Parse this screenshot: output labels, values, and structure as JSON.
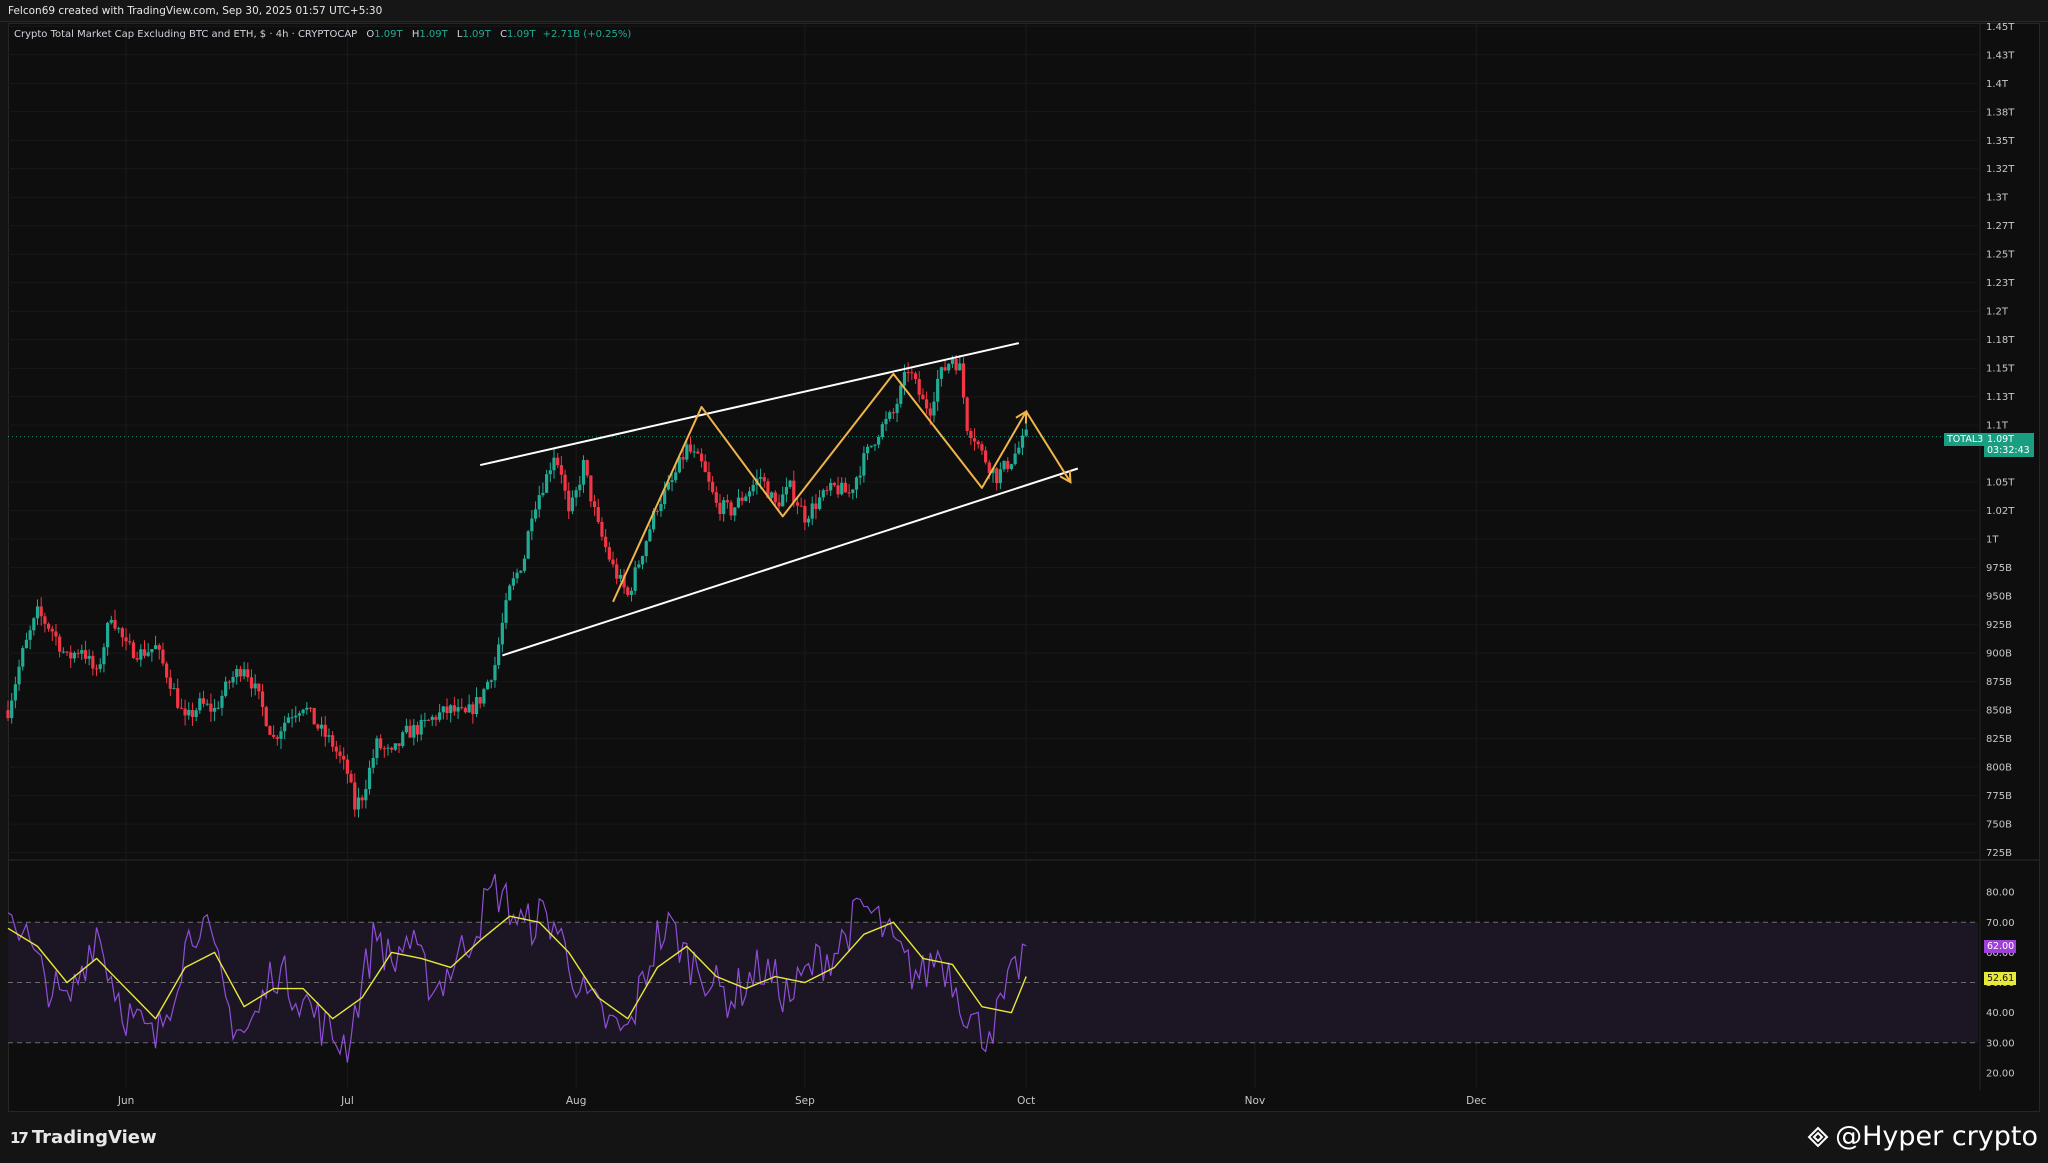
{
  "header": {
    "credit": "Felcon69 created with TradingView.com, Sep 30, 2025 01:57 UTC+5:30"
  },
  "legend": {
    "symbol": "Crypto Total Market Cap Excluding BTC and ETH, $ · 4h · CRYPTOCAP",
    "open_label": "O",
    "open": "1.09T",
    "high_label": "H",
    "high": "1.09T",
    "low_label": "L",
    "low": "1.09T",
    "close_label": "C",
    "close": "1.09T",
    "change": "+2.71B (+0.25%)"
  },
  "price_tags": {
    "symbol": "TOTAL3",
    "last_price": "1.09T",
    "countdown": "03:32:43",
    "rsi_value": "62.00",
    "rsi_ma_value": "52.61"
  },
  "footer": {
    "brand": "TradingView",
    "watermark": "@Hyper crypto"
  },
  "colors": {
    "up": "#22ab94",
    "down": "#f23645",
    "channel": "#ffffff",
    "path": "#f0b44a",
    "rsi": "#8e4fd6",
    "rsi_ma": "#e8e838",
    "rsi_band": "#1c1624"
  },
  "chart_data": {
    "type": "candlestick",
    "title": "Crypto Total Market Cap Excluding BTC and ETH, $ · 4h · CRYPTOCAP",
    "y_axis_labels": [
      "1.45T",
      "1.43T",
      "1.4T",
      "1.38T",
      "1.35T",
      "1.32T",
      "1.3T",
      "1.27T",
      "1.25T",
      "1.23T",
      "1.2T",
      "1.18T",
      "1.15T",
      "1.13T",
      "1.1T",
      "1.05T",
      "1.02T",
      "1T",
      "975B",
      "950B",
      "925B",
      "900B",
      "875B",
      "850B",
      "825B",
      "800B",
      "775B",
      "750B",
      "725B"
    ],
    "y_axis_values": [
      1450,
      1425,
      1400,
      1375,
      1350,
      1325,
      1300,
      1275,
      1250,
      1225,
      1200,
      1175,
      1150,
      1125,
      1100,
      1050,
      1025,
      1000,
      975,
      950,
      925,
      900,
      875,
      850,
      825,
      800,
      775,
      750,
      725
    ],
    "ylim": [
      722,
      1452
    ],
    "x_axis_labels": [
      "Jun",
      "Jul",
      "Aug",
      "Sep",
      "Oct",
      "Nov",
      "Dec"
    ],
    "x_axis_days": [
      16,
      46,
      77,
      108,
      138,
      169,
      199
    ],
    "xlim_days": [
      0,
      267
    ],
    "price_path": [
      [
        0,
        850
      ],
      [
        2,
        900
      ],
      [
        4,
        935
      ],
      [
        6,
        920
      ],
      [
        8,
        895
      ],
      [
        10,
        905
      ],
      [
        12,
        880
      ],
      [
        14,
        935
      ],
      [
        16,
        905
      ],
      [
        18,
        900
      ],
      [
        20,
        905
      ],
      [
        22,
        875
      ],
      [
        24,
        840
      ],
      [
        26,
        855
      ],
      [
        28,
        850
      ],
      [
        30,
        875
      ],
      [
        32,
        890
      ],
      [
        34,
        860
      ],
      [
        36,
        825
      ],
      [
        38,
        845
      ],
      [
        40,
        855
      ],
      [
        42,
        835
      ],
      [
        44,
        820
      ],
      [
        46,
        795
      ],
      [
        47,
        765
      ],
      [
        48,
        775
      ],
      [
        50,
        820
      ],
      [
        52,
        810
      ],
      [
        54,
        830
      ],
      [
        56,
        835
      ],
      [
        58,
        845
      ],
      [
        60,
        850
      ],
      [
        62,
        845
      ],
      [
        64,
        860
      ],
      [
        66,
        890
      ],
      [
        67,
        925
      ],
      [
        68,
        955
      ],
      [
        70,
        985
      ],
      [
        71,
        1025
      ],
      [
        72,
        1040
      ],
      [
        73,
        1055
      ],
      [
        74,
        1075
      ],
      [
        75,
        1060
      ],
      [
        76,
        1020
      ],
      [
        77,
        1040
      ],
      [
        78,
        1065
      ],
      [
        80,
        1010
      ],
      [
        82,
        975
      ],
      [
        84,
        950
      ],
      [
        86,
        990
      ],
      [
        88,
        1030
      ],
      [
        90,
        1050
      ],
      [
        92,
        1080
      ],
      [
        94,
        1065
      ],
      [
        96,
        1030
      ],
      [
        98,
        1025
      ],
      [
        100,
        1040
      ],
      [
        102,
        1055
      ],
      [
        104,
        1030
      ],
      [
        106,
        1045
      ],
      [
        108,
        1020
      ],
      [
        110,
        1035
      ],
      [
        112,
        1045
      ],
      [
        114,
        1040
      ],
      [
        116,
        1070
      ],
      [
        118,
        1095
      ],
      [
        120,
        1110
      ],
      [
        122,
        1150
      ],
      [
        124,
        1120
      ],
      [
        125,
        1115
      ],
      [
        126,
        1140
      ],
      [
        128,
        1160
      ],
      [
        129,
        1150
      ],
      [
        130,
        1100
      ],
      [
        131,
        1090
      ],
      [
        132,
        1075
      ],
      [
        133,
        1065
      ],
      [
        134,
        1055
      ],
      [
        136,
        1070
      ],
      [
        137,
        1080
      ],
      [
        138,
        1090
      ]
    ],
    "channel_upper": [
      [
        64,
        1065
      ],
      [
        137,
        1172
      ]
    ],
    "channel_lower": [
      [
        67,
        898
      ],
      [
        145,
        1062
      ]
    ],
    "projection_path": [
      [
        82,
        945
      ],
      [
        94,
        1116
      ],
      [
        105,
        1020
      ],
      [
        120,
        1145
      ],
      [
        132,
        1045
      ],
      [
        138,
        1112
      ],
      [
        144,
        1050
      ]
    ],
    "rsi": {
      "ylim": [
        15,
        90
      ],
      "y_axis_labels": [
        "80.00",
        "70.00",
        "60.00",
        "50.00",
        "40.00",
        "30.00",
        "20.00"
      ],
      "y_axis_values": [
        80,
        70,
        60,
        50,
        40,
        30,
        20
      ],
      "bands": [
        70,
        50,
        30
      ],
      "path": [
        [
          0,
          75
        ],
        [
          2,
          68
        ],
        [
          4,
          55
        ],
        [
          6,
          48
        ],
        [
          8,
          42
        ],
        [
          10,
          55
        ],
        [
          12,
          68
        ],
        [
          14,
          52
        ],
        [
          16,
          40
        ],
        [
          18,
          35
        ],
        [
          20,
          30
        ],
        [
          22,
          45
        ],
        [
          24,
          62
        ],
        [
          26,
          72
        ],
        [
          28,
          58
        ],
        [
          30,
          40
        ],
        [
          32,
          33
        ],
        [
          34,
          40
        ],
        [
          36,
          55
        ],
        [
          38,
          50
        ],
        [
          40,
          45
        ],
        [
          42,
          38
        ],
        [
          44,
          32
        ],
        [
          46,
          30
        ],
        [
          48,
          50
        ],
        [
          50,
          68
        ],
        [
          52,
          55
        ],
        [
          54,
          65
        ],
        [
          56,
          55
        ],
        [
          58,
          48
        ],
        [
          60,
          55
        ],
        [
          62,
          62
        ],
        [
          64,
          72
        ],
        [
          66,
          82
        ],
        [
          68,
          75
        ],
        [
          70,
          68
        ],
        [
          72,
          72
        ],
        [
          74,
          70
        ],
        [
          76,
          58
        ],
        [
          78,
          45
        ],
        [
          80,
          40
        ],
        [
          82,
          35
        ],
        [
          84,
          33
        ],
        [
          86,
          50
        ],
        [
          88,
          65
        ],
        [
          90,
          68
        ],
        [
          92,
          58
        ],
        [
          94,
          55
        ],
        [
          96,
          48
        ],
        [
          98,
          45
        ],
        [
          100,
          50
        ],
        [
          102,
          55
        ],
        [
          104,
          50
        ],
        [
          106,
          45
        ],
        [
          108,
          52
        ],
        [
          110,
          58
        ],
        [
          112,
          60
        ],
        [
          114,
          68
        ],
        [
          116,
          75
        ],
        [
          118,
          70
        ],
        [
          120,
          62
        ],
        [
          122,
          55
        ],
        [
          124,
          52
        ],
        [
          126,
          60
        ],
        [
          128,
          52
        ],
        [
          130,
          40
        ],
        [
          132,
          33
        ],
        [
          134,
          38
        ],
        [
          136,
          50
        ],
        [
          138,
          62
        ]
      ],
      "ma_path": [
        [
          0,
          68
        ],
        [
          4,
          62
        ],
        [
          8,
          50
        ],
        [
          12,
          58
        ],
        [
          16,
          48
        ],
        [
          20,
          38
        ],
        [
          24,
          55
        ],
        [
          28,
          60
        ],
        [
          32,
          42
        ],
        [
          36,
          48
        ],
        [
          40,
          48
        ],
        [
          44,
          38
        ],
        [
          48,
          45
        ],
        [
          52,
          60
        ],
        [
          56,
          58
        ],
        [
          60,
          55
        ],
        [
          64,
          64
        ],
        [
          68,
          72
        ],
        [
          72,
          70
        ],
        [
          76,
          60
        ],
        [
          80,
          45
        ],
        [
          84,
          38
        ],
        [
          88,
          55
        ],
        [
          92,
          62
        ],
        [
          96,
          52
        ],
        [
          100,
          48
        ],
        [
          104,
          52
        ],
        [
          108,
          50
        ],
        [
          112,
          55
        ],
        [
          116,
          66
        ],
        [
          120,
          70
        ],
        [
          124,
          58
        ],
        [
          128,
          56
        ],
        [
          132,
          42
        ],
        [
          136,
          40
        ],
        [
          138,
          52
        ]
      ]
    }
  }
}
